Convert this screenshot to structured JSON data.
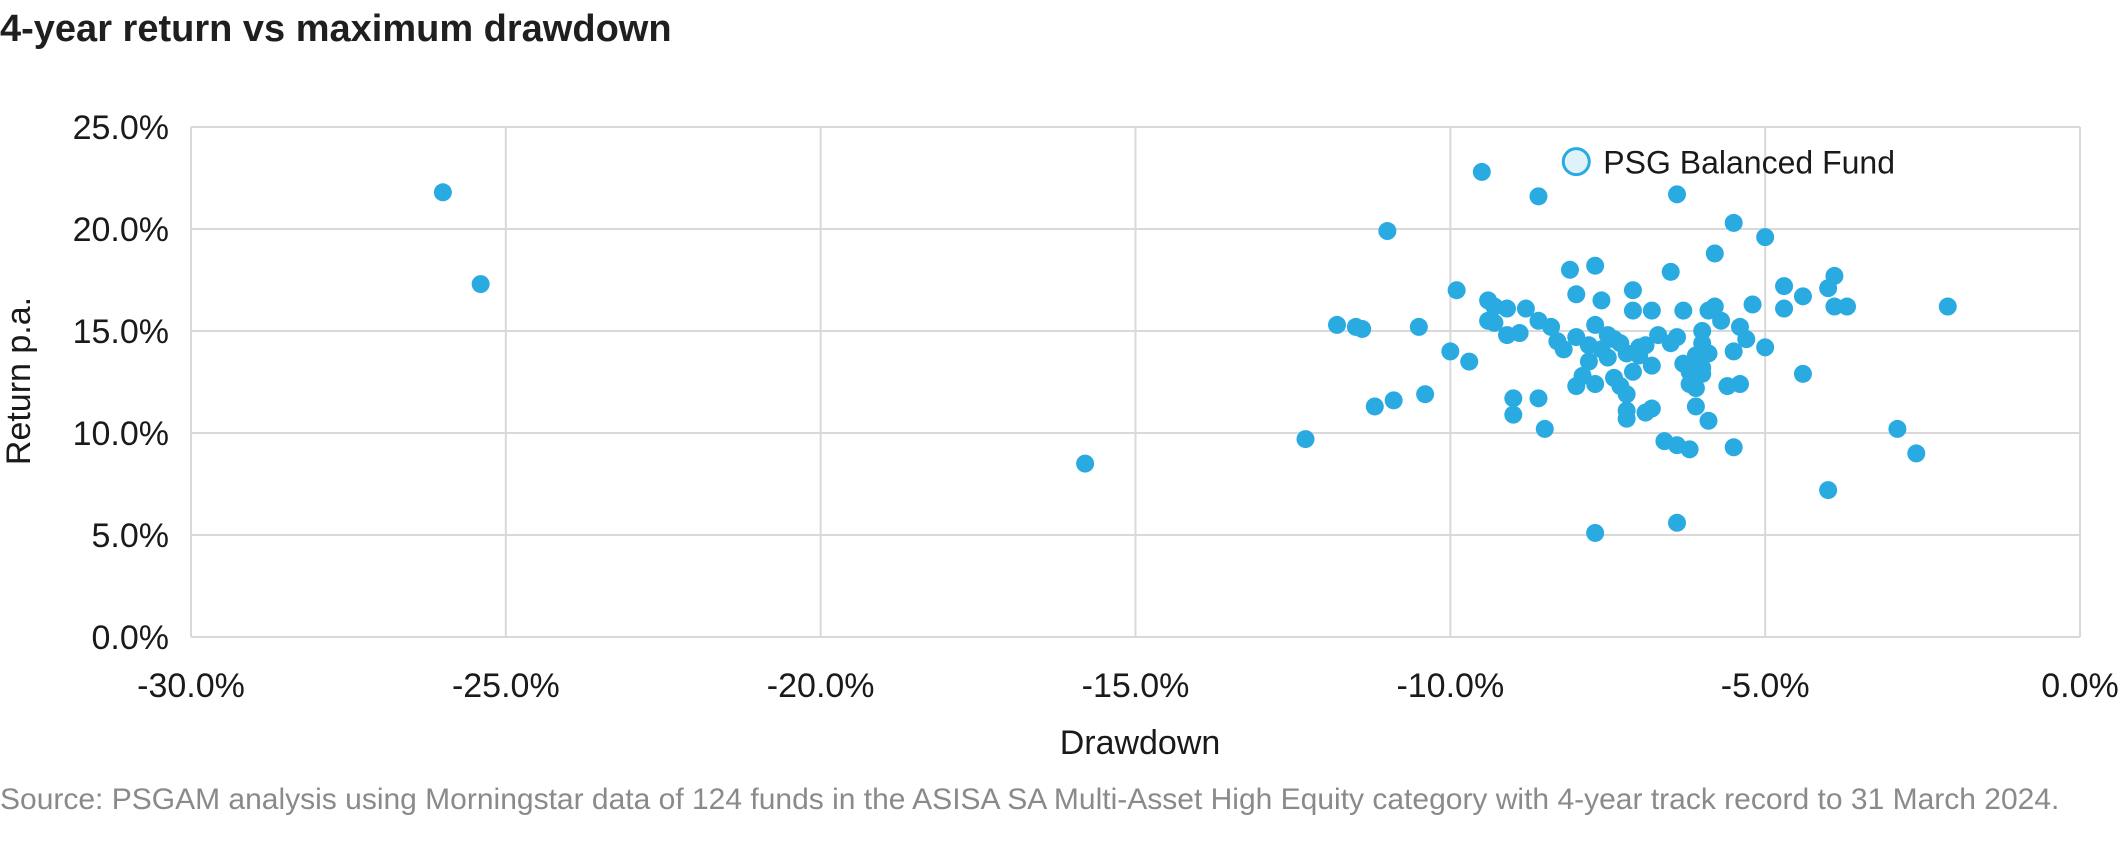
{
  "title": "4-year return vs maximum drawdown",
  "source": "Source: PSGAM analysis using Morningstar data of 124 funds in the ASISA SA Multi-Asset High Equity category with 4-year track record to 31 March 2024.",
  "colors": {
    "point": "#29abe2",
    "highlight_fill": "#dff2fa",
    "highlight_stroke": "#29abe2",
    "grid": "#d9d9d9",
    "axis": "#bfbfbf"
  },
  "chart_data": {
    "type": "scatter",
    "xlabel": "Drawdown",
    "ylabel": "Return p.a.",
    "xlim": [
      -30,
      0
    ],
    "ylim": [
      0,
      25
    ],
    "x_ticks": [
      -30,
      -25,
      -20,
      -15,
      -10,
      -5,
      0
    ],
    "x_tick_labels": [
      "-30.0%",
      "-25.0%",
      "-20.0%",
      "-15.0%",
      "-10.0%",
      "-5.0%",
      "0.0%"
    ],
    "y_ticks": [
      0,
      5,
      10,
      15,
      20,
      25
    ],
    "y_tick_labels": [
      "0.0%",
      "5.0%",
      "10.0%",
      "15.0%",
      "20.0%",
      "25.0%"
    ],
    "grid": true,
    "series": [
      {
        "name": "",
        "points": [
          [
            -26.0,
            21.8
          ],
          [
            -25.4,
            17.3
          ],
          [
            -15.8,
            8.5
          ],
          [
            -12.3,
            9.7
          ],
          [
            -11.8,
            15.3
          ],
          [
            -11.5,
            15.2
          ],
          [
            -11.4,
            15.1
          ],
          [
            -11.2,
            11.3
          ],
          [
            -11.0,
            19.9
          ],
          [
            -10.9,
            11.6
          ],
          [
            -10.5,
            15.2
          ],
          [
            -10.4,
            11.9
          ],
          [
            -10.0,
            14.0
          ],
          [
            -9.9,
            17.0
          ],
          [
            -9.7,
            13.5
          ],
          [
            -9.5,
            22.8
          ],
          [
            -9.4,
            16.5
          ],
          [
            -9.4,
            15.5
          ],
          [
            -9.3,
            16.2
          ],
          [
            -9.3,
            15.4
          ],
          [
            -9.1,
            16.1
          ],
          [
            -9.1,
            14.8
          ],
          [
            -9.0,
            11.7
          ],
          [
            -9.0,
            10.9
          ],
          [
            -8.9,
            14.9
          ],
          [
            -8.8,
            16.1
          ],
          [
            -8.6,
            21.6
          ],
          [
            -8.6,
            15.5
          ],
          [
            -8.6,
            11.7
          ],
          [
            -8.5,
            10.2
          ],
          [
            -8.4,
            15.2
          ],
          [
            -8.3,
            14.5
          ],
          [
            -8.2,
            14.1
          ],
          [
            -8.1,
            18.0
          ],
          [
            -8.0,
            16.8
          ],
          [
            -8.0,
            14.7
          ],
          [
            -8.0,
            12.3
          ],
          [
            -7.9,
            12.8
          ],
          [
            -7.8,
            14.3
          ],
          [
            -7.8,
            13.5
          ],
          [
            -7.7,
            18.2
          ],
          [
            -7.7,
            15.3
          ],
          [
            -7.7,
            12.4
          ],
          [
            -7.7,
            5.1
          ],
          [
            -7.6,
            16.5
          ],
          [
            -7.6,
            14.1
          ],
          [
            -7.5,
            14.8
          ],
          [
            -7.5,
            13.7
          ],
          [
            -7.4,
            14.6
          ],
          [
            -7.4,
            12.7
          ],
          [
            -7.3,
            14.4
          ],
          [
            -7.3,
            12.3
          ],
          [
            -7.2,
            13.9
          ],
          [
            -7.2,
            11.9
          ],
          [
            -7.2,
            11.1
          ],
          [
            -7.2,
            10.7
          ],
          [
            -7.1,
            17.0
          ],
          [
            -7.1,
            16.0
          ],
          [
            -7.1,
            13.0
          ],
          [
            -7.0,
            14.2
          ],
          [
            -7.0,
            13.8
          ],
          [
            -6.9,
            14.3
          ],
          [
            -6.9,
            11.0
          ],
          [
            -6.8,
            16.0
          ],
          [
            -6.8,
            13.3
          ],
          [
            -6.8,
            11.2
          ],
          [
            -6.7,
            14.8
          ],
          [
            -6.6,
            9.6
          ],
          [
            -6.5,
            17.9
          ],
          [
            -6.5,
            14.4
          ],
          [
            -6.4,
            21.7
          ],
          [
            -6.4,
            14.7
          ],
          [
            -6.4,
            9.4
          ],
          [
            -6.4,
            5.6
          ],
          [
            -6.3,
            16.0
          ],
          [
            -6.3,
            13.4
          ],
          [
            -6.2,
            13.0
          ],
          [
            -6.2,
            12.4
          ],
          [
            -6.2,
            9.2
          ],
          [
            -6.1,
            13.8
          ],
          [
            -6.1,
            12.2
          ],
          [
            -6.1,
            11.3
          ],
          [
            -6.0,
            15.0
          ],
          [
            -6.0,
            14.4
          ],
          [
            -6.0,
            13.2
          ],
          [
            -6.0,
            12.9
          ],
          [
            -5.9,
            16.0
          ],
          [
            -5.9,
            13.9
          ],
          [
            -5.9,
            10.6
          ],
          [
            -5.8,
            18.8
          ],
          [
            -5.8,
            16.2
          ],
          [
            -5.7,
            15.5
          ],
          [
            -5.6,
            12.3
          ],
          [
            -5.5,
            20.3
          ],
          [
            -5.5,
            14.0
          ],
          [
            -5.5,
            9.3
          ],
          [
            -5.4,
            15.2
          ],
          [
            -5.4,
            12.4
          ],
          [
            -5.3,
            14.6
          ],
          [
            -5.2,
            16.3
          ],
          [
            -5.0,
            19.6
          ],
          [
            -5.0,
            14.2
          ],
          [
            -4.7,
            17.2
          ],
          [
            -4.7,
            16.1
          ],
          [
            -4.4,
            16.7
          ],
          [
            -4.4,
            12.9
          ],
          [
            -4.0,
            17.1
          ],
          [
            -4.0,
            7.2
          ],
          [
            -3.9,
            17.7
          ],
          [
            -3.9,
            16.2
          ],
          [
            -3.7,
            16.2
          ],
          [
            -2.9,
            10.2
          ],
          [
            -2.6,
            9.0
          ],
          [
            -2.1,
            16.2
          ]
        ]
      }
    ],
    "highlight": {
      "name": "PSG Balanced Fund",
      "x": -8.0,
      "y": 23.3
    }
  }
}
